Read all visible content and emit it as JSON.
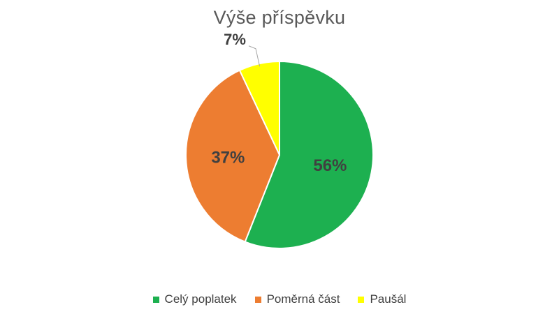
{
  "chart_data": {
    "type": "pie",
    "title": "Výše příspěvku",
    "categories": [
      "Celý poplatek",
      "Poměrná část",
      "Paušál"
    ],
    "values": [
      56,
      37,
      7
    ],
    "data_labels": [
      "56%",
      "37%",
      "7%"
    ],
    "colors": [
      "#1DB050",
      "#ED7D31",
      "#FFFF00"
    ],
    "label_colors": [
      "#404040",
      "#404040",
      "#404040"
    ],
    "legend_position": "bottom",
    "start_angle_deg": 0,
    "direction": "clockwise"
  }
}
